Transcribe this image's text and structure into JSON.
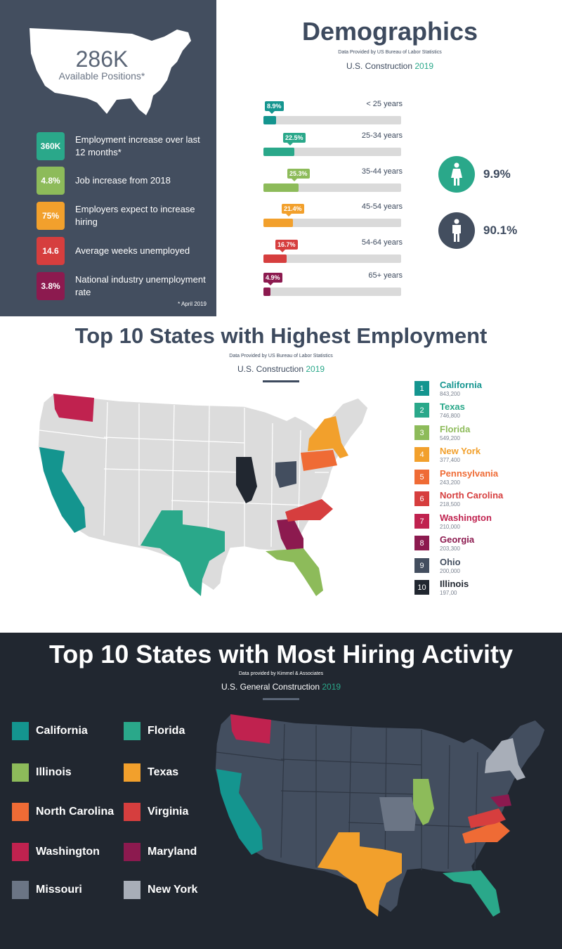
{
  "summary": {
    "headline_value": "286K",
    "headline_label": "Available Positions*",
    "stats": [
      {
        "value": "360K",
        "label": "Employment increase over last 12 months*",
        "color": "#2aa88a"
      },
      {
        "value": "4.8%",
        "label": "Job increase from 2018",
        "color": "#8dbb5a"
      },
      {
        "value": "75%",
        "label": "Employers expect to increase hiring",
        "color": "#f2a02c"
      },
      {
        "value": "14.6",
        "label": "Average weeks unemployed",
        "color": "#d63e3e"
      },
      {
        "value": "3.8%",
        "label": "National industry unemployment rate",
        "color": "#8c1a4f"
      }
    ],
    "footnote": "* April 2019"
  },
  "demographics": {
    "title": "Demographics",
    "source": "Data Provided by US Bureau of Labor Statistics",
    "subtitle": "U.S. Construction",
    "year": "2019",
    "age_groups": [
      {
        "label": "< 25 years",
        "pct": 8.9,
        "text": "8.9%",
        "color": "#14958f"
      },
      {
        "label": "25-34 years",
        "pct": 22.5,
        "text": "22.5%",
        "color": "#2aa88a"
      },
      {
        "label": "35-44 years",
        "pct": 25.3,
        "text": "25.3%",
        "color": "#8dbb5a"
      },
      {
        "label": "45-54 years",
        "pct": 21.4,
        "text": "21.4%",
        "color": "#f2a02c"
      },
      {
        "label": "54-64 years",
        "pct": 16.7,
        "text": "16.7%",
        "color": "#d63e3e"
      },
      {
        "label": "65+ years",
        "pct": 4.9,
        "text": "4.9%",
        "color": "#8c1a4f"
      }
    ],
    "female_pct": "9.9%",
    "male_pct": "90.1%",
    "female_color": "#2aa88a",
    "male_color": "#434e5f"
  },
  "employment": {
    "title": "Top 10 States with Highest Employment",
    "source": "Data Provided by US Bureau of Labor Statistics",
    "subtitle": "U.S. Construction",
    "year": "2019",
    "ranks": [
      {
        "rank": "1",
        "state": "California",
        "value": "843,200",
        "color": "#14958f"
      },
      {
        "rank": "2",
        "state": "Texas",
        "value": "746,800",
        "color": "#2aa88a"
      },
      {
        "rank": "3",
        "state": "Florida",
        "value": "549,200",
        "color": "#8dbb5a"
      },
      {
        "rank": "4",
        "state": "New York",
        "value": "377,400",
        "color": "#f2a02c"
      },
      {
        "rank": "5",
        "state": "Pennsylvania",
        "value": "243,200",
        "color": "#ef6b35"
      },
      {
        "rank": "6",
        "state": "North Carolina",
        "value": "218,500",
        "color": "#d63e3e"
      },
      {
        "rank": "7",
        "state": "Washington",
        "value": "210,000",
        "color": "#c0224f"
      },
      {
        "rank": "8",
        "state": "Georgia",
        "value": "203,300",
        "color": "#8c1a4f"
      },
      {
        "rank": "9",
        "state": "Ohio",
        "value": "200,000",
        "color": "#434e5f"
      },
      {
        "rank": "10",
        "state": "Illinois",
        "value": "197,00",
        "color": "#212730"
      }
    ]
  },
  "hiring": {
    "title": "Top 10 States with Most Hiring Activity",
    "source": "Data provided by Kimmel & Associates",
    "subtitle": "U.S. General Construction",
    "year": "2019",
    "states": [
      {
        "name": "California",
        "color": "#14958f"
      },
      {
        "name": "Florida",
        "color": "#2aa88a"
      },
      {
        "name": "Illinois",
        "color": "#8dbb5a"
      },
      {
        "name": "Texas",
        "color": "#f2a02c"
      },
      {
        "name": "North Carolina",
        "color": "#ef6b35"
      },
      {
        "name": "Virginia",
        "color": "#d63e3e"
      },
      {
        "name": "Washington",
        "color": "#c0224f"
      },
      {
        "name": "Maryland",
        "color": "#8c1a4f"
      },
      {
        "name": "Missouri",
        "color": "#6b7585"
      },
      {
        "name": "New York",
        "color": "#a8aeb8"
      }
    ]
  }
}
